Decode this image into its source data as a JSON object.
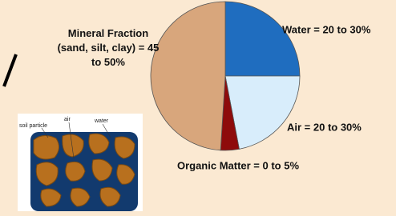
{
  "chart_data": {
    "type": "pie",
    "categories": [
      "Water = 20 to 30%",
      "Air = 20 to 30%",
      "Organic Matter = 0 to 5%",
      "Mineral Fraction (sand, silt, clay) = 45 to 50%"
    ],
    "values": [
      25,
      22,
      4,
      49
    ],
    "colors": [
      "#1f6dbf",
      "#d8edfb",
      "#8e0b0b",
      "#d8a67c"
    ]
  },
  "diagram": {
    "labels": [
      "soil particle",
      "air",
      "water"
    ]
  }
}
